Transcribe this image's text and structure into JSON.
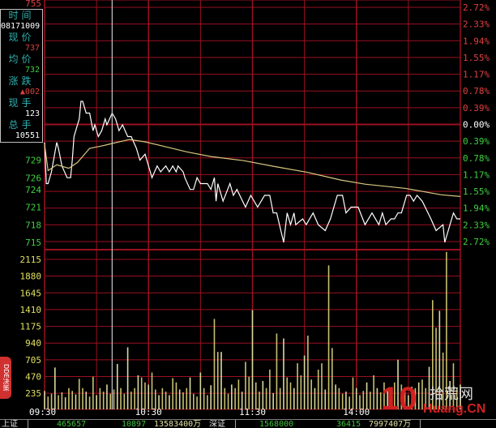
{
  "info_box": {
    "time_label": "时间",
    "time_value": "08171009",
    "price_label": "现价",
    "price_value": "737",
    "avg_label": "均价",
    "avg_value": "732",
    "change_label": "涨跌",
    "change_value": "▲002",
    "vol_label": "现手",
    "vol_value": "123",
    "total_label": "总手",
    "total_value": "10551"
  },
  "dde_tab": "DDE决策",
  "status_bar": {
    "sh_label": "上证",
    "sh_index": "465657",
    "sh_change": "10897",
    "sh_amount": "13583400万",
    "sz_label": "深证",
    "sz_index": "1568000",
    "sz_change": "36415",
    "sz_amount": "7997407万"
  },
  "watermark": {
    "number": "10",
    "cn": "拾荒网",
    "en": "Huang.CN"
  },
  "colors": {
    "grid": "#9a1020",
    "price_line": "#ffffff",
    "avg_line": "#d8c880",
    "volume": "#c8c070",
    "up": "#e04040",
    "down": "#40d040",
    "neutral": "#ffffff"
  },
  "chart_data": [
    {
      "type": "line",
      "pane": "price",
      "prev_close": 7.35,
      "ylim": [
        7.15,
        7.55
      ],
      "left_ticks": [
        "755",
        "729",
        "726",
        "724",
        "721",
        "718",
        "715"
      ],
      "left_tick_values": [
        7.55,
        7.29,
        7.26,
        7.24,
        7.21,
        7.18,
        7.15
      ],
      "right_ticks": [
        "2.72%",
        "2.33%",
        "1.94%",
        "1.55%",
        "1.17%",
        "0.78%",
        "0.39%",
        "0.00%",
        "0.39%",
        "0.78%",
        "1.17%",
        "1.55%",
        "1.94%",
        "2.33%",
        "2.72%"
      ],
      "x_ticks": [
        "09:30",
        "10:30",
        "11:30",
        "14:00"
      ],
      "cursor_time": "10:09",
      "series": [
        {
          "kind": "price",
          "points": [
            [
              "09:30",
              7.32
            ],
            [
              "09:31",
              7.25
            ],
            [
              "09:32",
              7.25
            ],
            [
              "09:34",
              7.27
            ],
            [
              "09:37",
              7.32
            ],
            [
              "09:38",
              7.31
            ],
            [
              "09:40",
              7.28
            ],
            [
              "09:43",
              7.26
            ],
            [
              "09:45",
              7.26
            ],
            [
              "09:46",
              7.29
            ],
            [
              "09:47",
              7.33
            ],
            [
              "09:50",
              7.36
            ],
            [
              "09:51",
              7.39
            ],
            [
              "09:52",
              7.39
            ],
            [
              "09:54",
              7.37
            ],
            [
              "09:56",
              7.37
            ],
            [
              "09:58",
              7.34
            ],
            [
              "09:59",
              7.35
            ],
            [
              "10:01",
              7.33
            ],
            [
              "10:03",
              7.34
            ],
            [
              "10:05",
              7.36
            ],
            [
              "10:06",
              7.35
            ],
            [
              "10:09",
              7.37
            ],
            [
              "10:11",
              7.36
            ],
            [
              "10:13",
              7.34
            ],
            [
              "10:15",
              7.35
            ],
            [
              "10:18",
              7.33
            ],
            [
              "10:20",
              7.33
            ],
            [
              "10:23",
              7.31
            ],
            [
              "10:25",
              7.29
            ],
            [
              "10:28",
              7.3
            ],
            [
              "10:30",
              7.28
            ],
            [
              "10:32",
              7.26
            ],
            [
              "10:35",
              7.28
            ],
            [
              "10:37",
              7.27
            ],
            [
              "10:40",
              7.28
            ],
            [
              "10:42",
              7.27
            ],
            [
              "10:44",
              7.28
            ],
            [
              "10:46",
              7.27
            ],
            [
              "10:47",
              7.28
            ],
            [
              "10:50",
              7.27
            ],
            [
              "10:51",
              7.26
            ],
            [
              "10:54",
              7.24
            ],
            [
              "10:56",
              7.24
            ],
            [
              "10:58",
              7.26
            ],
            [
              "11:00",
              7.25
            ],
            [
              "11:04",
              7.25
            ],
            [
              "11:06",
              7.24
            ],
            [
              "11:08",
              7.26
            ],
            [
              "11:09",
              7.22
            ],
            [
              "11:10",
              7.25
            ],
            [
              "11:13",
              7.22
            ],
            [
              "11:17",
              7.25
            ],
            [
              "11:19",
              7.23
            ],
            [
              "11:21",
              7.24
            ],
            [
              "11:26",
              7.21
            ],
            [
              "11:29",
              7.23
            ],
            [
              "13:03",
              7.21
            ],
            [
              "13:07",
              7.23
            ],
            [
              "13:10",
              7.23
            ],
            [
              "13:12",
              7.2
            ],
            [
              "13:14",
              7.2
            ],
            [
              "13:18",
              7.15
            ],
            [
              "13:20",
              7.2
            ],
            [
              "13:22",
              7.18
            ],
            [
              "13:24",
              7.2
            ],
            [
              "13:25",
              7.18
            ],
            [
              "13:29",
              7.19
            ],
            [
              "13:31",
              7.18
            ],
            [
              "13:35",
              7.2
            ],
            [
              "13:38",
              7.18
            ],
            [
              "13:42",
              7.17
            ],
            [
              "13:45",
              7.19
            ],
            [
              "13:49",
              7.23
            ],
            [
              "13:52",
              7.23
            ],
            [
              "13:54",
              7.2
            ],
            [
              "13:57",
              7.21
            ],
            [
              "14:01",
              7.21
            ],
            [
              "14:05",
              7.18
            ],
            [
              "14:09",
              7.2
            ],
            [
              "14:13",
              7.18
            ],
            [
              "14:15",
              7.2
            ],
            [
              "14:17",
              7.18
            ],
            [
              "14:20",
              7.19
            ],
            [
              "14:22",
              7.19
            ],
            [
              "14:24",
              7.2
            ],
            [
              "14:26",
              7.2
            ],
            [
              "14:29",
              7.23
            ],
            [
              "14:31",
              7.23
            ],
            [
              "14:33",
              7.22
            ],
            [
              "14:35",
              7.23
            ],
            [
              "14:38",
              7.22
            ],
            [
              "14:43",
              7.19
            ],
            [
              "14:46",
              7.17
            ],
            [
              "14:50",
              7.18
            ],
            [
              "14:51",
              7.15
            ],
            [
              "14:54",
              7.18
            ],
            [
              "14:56",
              7.2
            ],
            [
              "14:58",
              7.19
            ],
            [
              "15:00",
              7.19
            ]
          ]
        },
        {
          "kind": "average",
          "points": [
            [
              "09:30",
              7.317
            ],
            [
              "09:32",
              7.272
            ],
            [
              "09:37",
              7.282
            ],
            [
              "09:44",
              7.276
            ],
            [
              "09:49",
              7.286
            ],
            [
              "09:56",
              7.31
            ],
            [
              "10:03",
              7.314
            ],
            [
              "10:10",
              7.319
            ],
            [
              "10:19",
              7.325
            ],
            [
              "10:28",
              7.321
            ],
            [
              "10:38",
              7.314
            ],
            [
              "10:52",
              7.304
            ],
            [
              "11:06",
              7.296
            ],
            [
              "11:25",
              7.289
            ],
            [
              "13:13",
              7.279
            ],
            [
              "13:32",
              7.269
            ],
            [
              "13:51",
              7.256
            ],
            [
              "14:05",
              7.249
            ],
            [
              "14:28",
              7.242
            ],
            [
              "14:49",
              7.231
            ],
            [
              "15:00",
              7.228
            ]
          ]
        }
      ]
    },
    {
      "type": "bar",
      "pane": "volume",
      "ylim": [
        0,
        2350
      ],
      "y_ticks": [
        "2115",
        "1880",
        "1645",
        "1410",
        "1175",
        "940",
        "705",
        "470",
        "235"
      ],
      "interval_minutes": 2,
      "start_time": "09:30",
      "values": [
        260,
        180,
        220,
        590,
        200,
        240,
        170,
        300,
        260,
        210,
        430,
        300,
        250,
        180,
        460,
        200,
        300,
        250,
        350,
        220,
        280,
        640,
        300,
        220,
        875,
        250,
        300,
        480,
        450,
        380,
        350,
        520,
        280,
        200,
        300,
        250,
        200,
        440,
        380,
        280,
        240,
        300,
        450,
        220,
        180,
        520,
        300,
        200,
        340,
        1275,
        810,
        810,
        300,
        220,
        350,
        300,
        420,
        250,
        670,
        460,
        1400,
        380,
        250,
        400,
        300,
        560,
        230,
        1070,
        300,
        1000,
        450,
        380,
        300,
        650,
        480,
        760,
        1040,
        420,
        300,
        560,
        650,
        280,
        2030,
        865,
        350,
        300,
        220,
        250,
        180,
        450,
        300,
        200,
        260,
        380,
        250,
        480,
        300,
        240,
        380,
        300,
        220,
        380,
        700,
        350,
        250,
        200,
        320,
        300,
        380,
        420,
        300,
        600,
        1540,
        1150,
        1390,
        800,
        2220,
        400,
        650,
        300,
        350
      ]
    }
  ]
}
